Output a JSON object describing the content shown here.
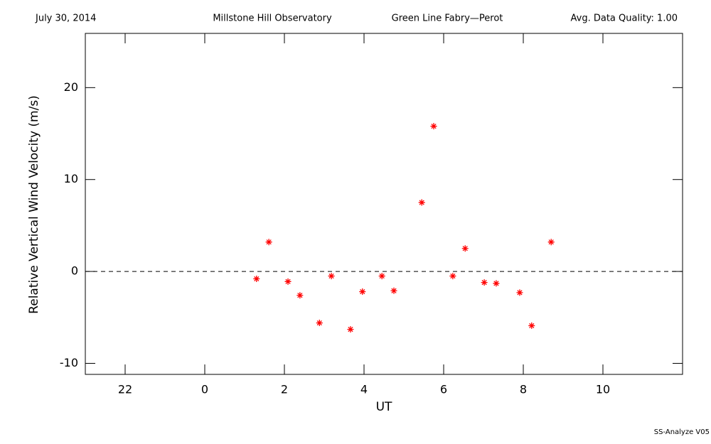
{
  "chart_data": {
    "type": "scatter",
    "header": [
      "July 30, 2014",
      "Millstone Hill Observatory",
      "Green Line Fabry—Perot",
      "Avg. Data Quality: 1.00"
    ],
    "footer": "SS-Analyze V05",
    "xlabel": "UT",
    "ylabel": "Relative Vertical Wind Velocity (m/s)",
    "xlim": [
      -3,
      12
    ],
    "ylim": [
      -11.2,
      25.9
    ],
    "xticks": [
      {
        "value": -2,
        "label": "22"
      },
      0,
      2,
      4,
      6,
      8,
      10
    ],
    "yticks": [
      -10,
      0,
      10,
      20
    ],
    "reference_line": 0,
    "series": [
      {
        "color": "#ff0000",
        "x": [
          1.3,
          1.61,
          2.09,
          2.39,
          2.88,
          3.18,
          3.66,
          3.96,
          4.45,
          4.75,
          5.45,
          5.75,
          6.23,
          6.54,
          7.02,
          7.32,
          7.91,
          8.21,
          8.7
        ],
        "values": [
          -0.8,
          3.2,
          -1.1,
          -2.6,
          -5.6,
          -0.5,
          -6.3,
          -2.2,
          -0.5,
          -2.1,
          7.5,
          15.8,
          -0.5,
          2.5,
          -1.2,
          -1.3,
          -2.3,
          -5.9,
          3.2
        ]
      }
    ]
  }
}
